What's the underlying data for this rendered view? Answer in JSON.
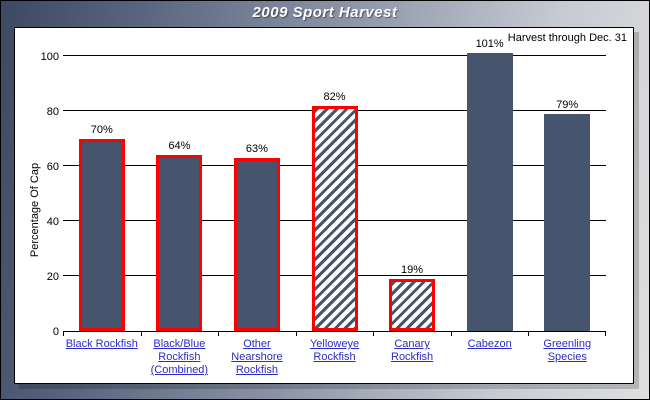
{
  "chart_data": {
    "type": "bar",
    "title": "2009 Sport Harvest",
    "annotation": "Harvest through Dec. 31",
    "xlabel": "",
    "ylabel": "Percentage Of Cap",
    "categories": [
      "Black Rockfish",
      "Black/Blue Rockfish (Combined)",
      "Other Nearshore Rockfish",
      "Yelloweye Rockfish",
      "Canary Rockfish",
      "Cabezon",
      "Greenling Species"
    ],
    "values": [
      70,
      64,
      63,
      82,
      19,
      101,
      79
    ],
    "bar_labels": [
      "70%",
      "64%",
      "63%",
      "82%",
      "19%",
      "101%",
      "79%"
    ],
    "bar_styles": [
      "solid-outlined",
      "solid-outlined",
      "solid-outlined",
      "hatched-outlined",
      "hatched-outlined",
      "solid",
      "solid"
    ],
    "yticks": [
      0,
      20,
      40,
      60,
      80,
      100
    ],
    "ylim": [
      0,
      110
    ],
    "grid": true,
    "legend": "none",
    "colors": {
      "bar_fill": "#47546E",
      "bar_highlight_border": "#FF0000",
      "hatch_background": "#FFFFFF",
      "category_link": "#2B2BC8",
      "grid_line": "#000000",
      "title_text": "#FFFFFF"
    }
  }
}
